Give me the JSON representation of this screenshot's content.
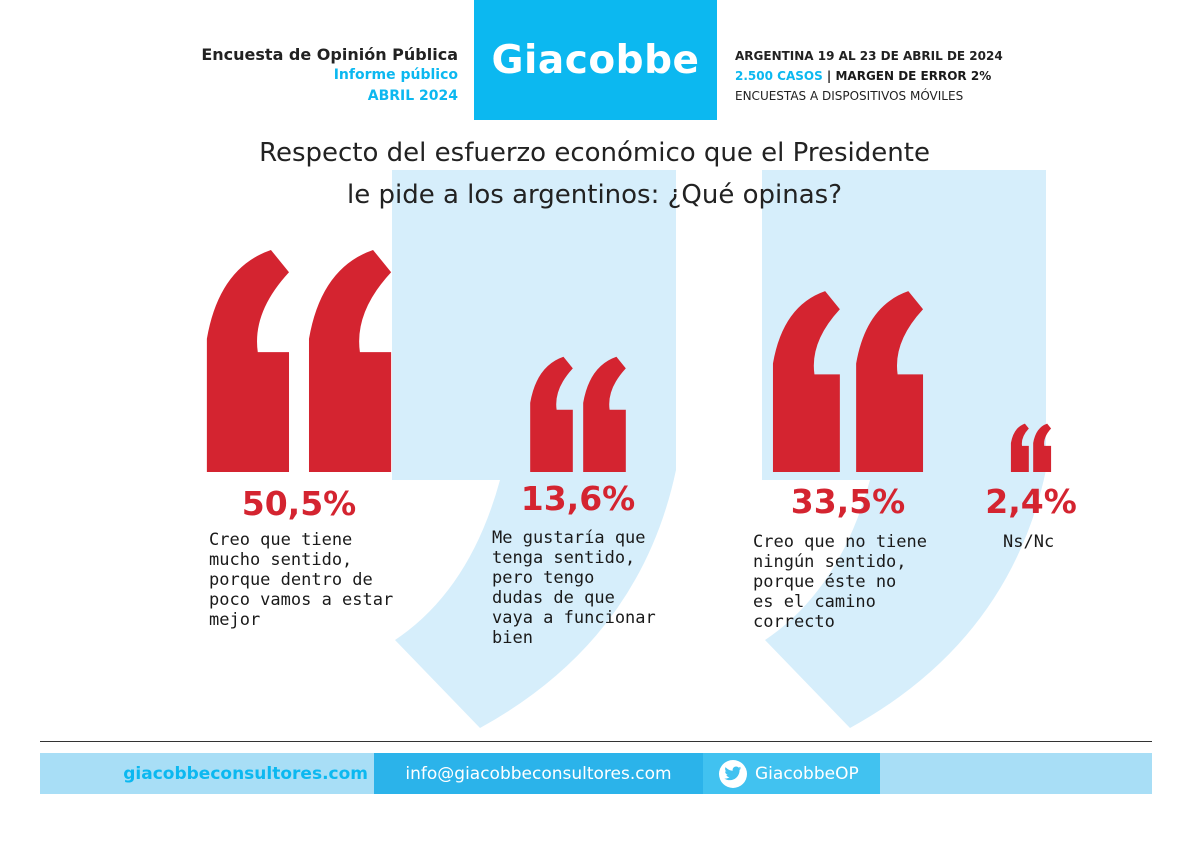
{
  "header": {
    "line1": "Encuesta de Opinión Pública",
    "line2": "Informe público",
    "line3": "ABRIL 2024",
    "logo": "Giacobbe",
    "info1": "ARGENTINA 19 AL 23 DE ABRIL DE 2024",
    "info2_cases": "2.500 CASOS",
    "info2_sep": " | ",
    "info2_margin": "MARGEN DE ERROR 2%",
    "info3": "ENCUESTAS A DISPOSITIVOS MÓVILES"
  },
  "colors": {
    "accent_blue": "#0cb8f0",
    "quote_red": "#d42430",
    "bg_quote": "#d6eefb",
    "footer_light": "#a8def6",
    "footer_mid": "#2bb3ea",
    "footer_dark": "#41c2f0"
  },
  "chart_data": {
    "type": "bar",
    "title_line1": "Respecto del esfuerzo económico que el Presidente",
    "title_line2": "le pide a los argentinos: ¿Qué opinas?",
    "unit": "%",
    "ylim": [
      0,
      50.5
    ],
    "categories": [
      {
        "label_lines": [
          "Creo que tiene",
          "mucho sentido,",
          "porque dentro de",
          "poco vamos a estar",
          "mejor"
        ],
        "value": 50.5,
        "value_label": "50,5%"
      },
      {
        "label_lines": [
          "Me gustaría que",
          "tenga sentido,",
          "pero tengo",
          "dudas de que",
          "vaya a funcionar",
          "bien"
        ],
        "value": 13.6,
        "value_label": "13,6%"
      },
      {
        "label_lines": [
          "Creo que no tiene",
          "ningún sentido,",
          "porque éste no",
          "es el camino",
          "correcto"
        ],
        "value": 33.5,
        "value_label": "33,5%"
      },
      {
        "label_lines": [
          "Ns/Nc"
        ],
        "value": 2.4,
        "value_label": "2,4%"
      }
    ]
  },
  "footer": {
    "website": "giacobbeconsultores.com",
    "email": "info@giacobbeconsultores.com",
    "twitter_icon": "twitter-icon",
    "twitter": "GiacobbeOP"
  }
}
